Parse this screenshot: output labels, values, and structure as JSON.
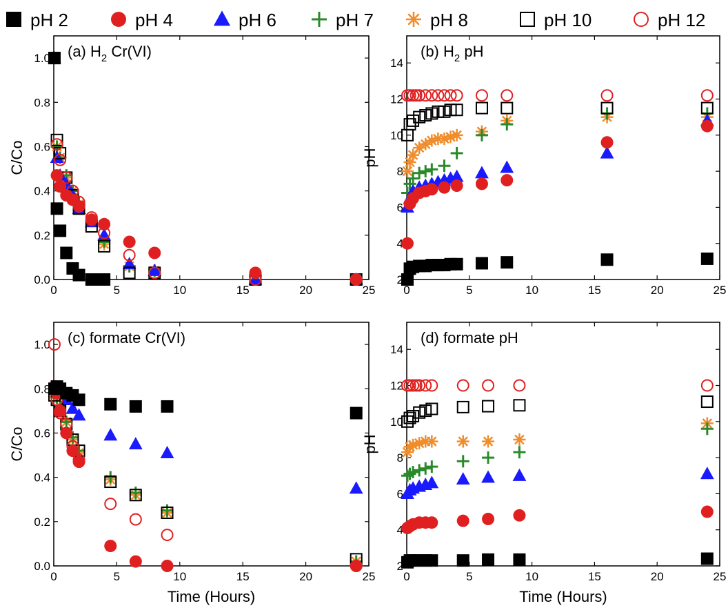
{
  "legend": [
    {
      "label": "pH 2",
      "marker": "filled-square",
      "color": "#000000"
    },
    {
      "label": "pH 4",
      "marker": "filled-circle",
      "color": "#e02020"
    },
    {
      "label": "pH 6",
      "marker": "filled-triangle",
      "color": "#1a1aff"
    },
    {
      "label": "pH 7",
      "marker": "plus",
      "color": "#2a8a2a"
    },
    {
      "label": "pH 8",
      "marker": "asterisk",
      "color": "#f08c2a"
    },
    {
      "label": "pH 10",
      "marker": "open-square",
      "color": "#000000"
    },
    {
      "label": "pH 12",
      "marker": "open-circle",
      "color": "#e02020"
    }
  ],
  "xlabel": "Time (Hours)",
  "chart_data": [
    {
      "type": "scatter",
      "panel_label": "(a) H",
      "panel_label_sub": "2",
      "panel_label_rest": " Cr(VI)",
      "ylabel": "C/Co",
      "xlim": [
        0,
        25
      ],
      "ylim": [
        0,
        1.1
      ],
      "xticks": [
        "0",
        "5",
        "10",
        "15",
        "20",
        "25"
      ],
      "yticks": [
        "0.0",
        "0.2",
        "0.4",
        "0.6",
        "0.8",
        "1.0"
      ],
      "series": [
        {
          "name": "pH 2",
          "x": [
            0,
            0.25,
            0.5,
            1,
            1.5,
            2,
            3,
            3.5,
            4
          ],
          "y": [
            1.0,
            0.32,
            0.22,
            0.12,
            0.05,
            0.02,
            0.0,
            0.0,
            0.0
          ]
        },
        {
          "name": "pH 4",
          "x": [
            0,
            0.25,
            0.5,
            1,
            1.5,
            2,
            3,
            4,
            6,
            8,
            16,
            24
          ],
          "y": [
            1.0,
            0.47,
            0.42,
            0.38,
            0.36,
            0.33,
            0.27,
            0.25,
            0.17,
            0.12,
            0.03,
            0.0
          ]
        },
        {
          "name": "pH 6",
          "x": [
            0,
            0.25,
            0.5,
            1,
            1.5,
            2,
            3,
            4,
            6,
            8,
            16,
            24
          ],
          "y": [
            1.0,
            0.55,
            0.47,
            0.43,
            0.38,
            0.32,
            0.26,
            0.2,
            0.07,
            0.04,
            0.0,
            0.0
          ]
        },
        {
          "name": "pH 7",
          "x": [
            0,
            0.25,
            0.5,
            1,
            1.5,
            2,
            3,
            4,
            6,
            8,
            16,
            24
          ],
          "y": [
            1.0,
            0.6,
            0.55,
            0.47,
            0.4,
            0.35,
            0.27,
            0.17,
            0.06,
            0.04,
            0.0,
            0.0
          ]
        },
        {
          "name": "pH 8",
          "x": [
            0,
            0.25,
            0.5,
            1,
            1.5,
            2,
            3,
            4,
            6,
            8,
            16,
            24
          ],
          "y": [
            1.0,
            0.6,
            0.55,
            0.46,
            0.4,
            0.34,
            0.27,
            0.16,
            0.06,
            0.04,
            0.0,
            0.0
          ]
        },
        {
          "name": "pH 10",
          "x": [
            0,
            0.25,
            0.5,
            1,
            1.5,
            2,
            3,
            4,
            6,
            8,
            16,
            24
          ],
          "y": [
            1.0,
            0.63,
            0.57,
            0.46,
            0.38,
            0.32,
            0.24,
            0.15,
            0.03,
            0.03,
            0.0,
            0.0
          ]
        },
        {
          "name": "pH 12",
          "x": [
            0,
            0.25,
            0.5,
            1,
            1.5,
            2,
            3,
            4,
            6,
            8,
            16,
            24
          ],
          "y": [
            1.0,
            0.61,
            0.54,
            0.46,
            0.4,
            0.35,
            0.28,
            0.21,
            0.11,
            0.03,
            0.0,
            0.0
          ]
        }
      ]
    },
    {
      "type": "scatter",
      "panel_label": "(b) H",
      "panel_label_sub": "2",
      "panel_label_rest": " pH",
      "ylabel": "pH",
      "xlim": [
        0,
        25
      ],
      "ylim": [
        2,
        15.5
      ],
      "xticks": [
        "0",
        "5",
        "10",
        "15",
        "20",
        "25"
      ],
      "yticks": [
        "2",
        "4",
        "6",
        "8",
        "10",
        "12",
        "14"
      ],
      "series": [
        {
          "name": "pH 2",
          "x": [
            0,
            0.25,
            0.5,
            1,
            1.5,
            2,
            2.5,
            3,
            3.5,
            4,
            6,
            8,
            16,
            24
          ],
          "y": [
            2.0,
            2.6,
            2.7,
            2.75,
            2.75,
            2.8,
            2.8,
            2.8,
            2.85,
            2.85,
            2.9,
            2.95,
            3.1,
            3.15
          ]
        },
        {
          "name": "pH 4",
          "x": [
            0,
            0.25,
            0.5,
            1,
            1.5,
            2,
            3,
            4,
            6,
            8,
            16,
            24
          ],
          "y": [
            4.0,
            6.2,
            6.5,
            6.8,
            6.9,
            7.0,
            7.1,
            7.2,
            7.3,
            7.5,
            9.6,
            10.5
          ]
        },
        {
          "name": "pH 6",
          "x": [
            0,
            0.25,
            0.5,
            1,
            1.5,
            2,
            2.5,
            3,
            3.5,
            4,
            6,
            8,
            16,
            24
          ],
          "y": [
            6.0,
            6.5,
            6.9,
            7.1,
            7.2,
            7.3,
            7.4,
            7.5,
            7.6,
            7.7,
            7.9,
            8.2,
            9.0,
            10.8
          ]
        },
        {
          "name": "pH 7",
          "x": [
            0,
            0.25,
            0.5,
            1,
            1.5,
            2,
            3,
            4,
            6,
            8,
            16,
            24
          ],
          "y": [
            6.8,
            7.3,
            7.6,
            7.9,
            8.0,
            8.1,
            8.3,
            9.0,
            10.0,
            10.6,
            11.2,
            11.2
          ]
        },
        {
          "name": "pH 8",
          "x": [
            0,
            0.25,
            0.5,
            1,
            1.5,
            2,
            2.5,
            3,
            3.5,
            4,
            6,
            8,
            16,
            24
          ],
          "y": [
            8.0,
            8.5,
            8.9,
            9.3,
            9.5,
            9.7,
            9.8,
            9.8,
            9.9,
            10.0,
            10.2,
            10.8,
            11.0,
            11.0
          ]
        },
        {
          "name": "pH 10",
          "x": [
            0,
            0.25,
            0.5,
            1,
            1.5,
            2,
            2.5,
            3,
            3.5,
            4,
            6,
            8,
            16,
            24
          ],
          "y": [
            10.0,
            10.6,
            10.8,
            11.0,
            11.1,
            11.2,
            11.3,
            11.3,
            11.4,
            11.4,
            11.5,
            11.5,
            11.5,
            11.5
          ]
        },
        {
          "name": "pH 12",
          "x": [
            0,
            0.25,
            0.5,
            0.75,
            1,
            1.5,
            2,
            2.5,
            3,
            3.5,
            4,
            6,
            8,
            16,
            24
          ],
          "y": [
            12.2,
            12.2,
            12.2,
            12.2,
            12.2,
            12.2,
            12.2,
            12.2,
            12.2,
            12.2,
            12.2,
            12.2,
            12.2,
            12.2,
            12.2
          ]
        }
      ]
    },
    {
      "type": "scatter",
      "panel_label": "(c) formate Cr(VI)",
      "panel_label_sub": "",
      "panel_label_rest": "",
      "ylabel": "C/Co",
      "xlim": [
        0,
        25
      ],
      "ylim": [
        0,
        1.1
      ],
      "xticks": [
        "0",
        "5",
        "10",
        "15",
        "20",
        "25"
      ],
      "yticks": [
        "0.0",
        "0.2",
        "0.4",
        "0.6",
        "0.8",
        "1.0"
      ],
      "series": [
        {
          "name": "pH 2",
          "x": [
            0,
            0.25,
            0.5,
            1,
            1.5,
            2,
            4.5,
            6.5,
            9,
            24
          ],
          "y": [
            0.8,
            0.81,
            0.8,
            0.78,
            0.77,
            0.75,
            0.73,
            0.72,
            0.72,
            0.69
          ]
        },
        {
          "name": "pH 4",
          "x": [
            0,
            0.25,
            0.5,
            1,
            1.5,
            2,
            4.5,
            6.5,
            9,
            24
          ],
          "y": [
            0.81,
            0.78,
            0.7,
            0.6,
            0.52,
            0.47,
            0.09,
            0.02,
            0.0,
            0.0
          ]
        },
        {
          "name": "pH 6",
          "x": [
            0,
            0.25,
            0.5,
            1,
            1.5,
            2,
            4.5,
            6.5,
            9,
            24
          ],
          "y": [
            0.8,
            0.8,
            0.78,
            0.75,
            0.71,
            0.68,
            0.59,
            0.55,
            0.51,
            0.35
          ]
        },
        {
          "name": "pH 7",
          "x": [
            0,
            0.25,
            0.5,
            1,
            1.5,
            2,
            4.5,
            6.5,
            9,
            24
          ],
          "y": [
            0.78,
            0.76,
            0.72,
            0.65,
            0.58,
            0.52,
            0.4,
            0.33,
            0.25,
            0.02
          ]
        },
        {
          "name": "pH 8",
          "x": [
            0,
            0.25,
            0.5,
            1,
            1.5,
            2,
            4.5,
            6.5,
            9,
            24
          ],
          "y": [
            0.78,
            0.76,
            0.72,
            0.65,
            0.57,
            0.51,
            0.39,
            0.32,
            0.24,
            0.02
          ]
        },
        {
          "name": "pH 10",
          "x": [
            0,
            0.25,
            0.5,
            1,
            1.5,
            2,
            4.5,
            6.5,
            9,
            24
          ],
          "y": [
            0.77,
            0.75,
            0.7,
            0.64,
            0.57,
            0.52,
            0.38,
            0.32,
            0.24,
            0.03
          ]
        },
        {
          "name": "pH 12",
          "x": [
            0,
            0.25,
            0.5,
            1,
            1.5,
            2,
            4.5,
            6.5,
            9,
            24
          ],
          "y": [
            1.0,
            0.75,
            0.69,
            0.64,
            0.54,
            0.48,
            0.28,
            0.21,
            0.14,
            0.0
          ]
        }
      ]
    },
    {
      "type": "scatter",
      "panel_label": "(d) formate pH",
      "panel_label_sub": "",
      "panel_label_rest": "",
      "ylabel": "pH",
      "xlim": [
        0,
        25
      ],
      "ylim": [
        2,
        15.5
      ],
      "xticks": [
        "0",
        "5",
        "10",
        "15",
        "20",
        "25"
      ],
      "yticks": [
        "2",
        "4",
        "6",
        "8",
        "10",
        "12",
        "14"
      ],
      "series": [
        {
          "name": "pH 2",
          "x": [
            0,
            0.25,
            0.5,
            1,
            1.5,
            2,
            4.5,
            6.5,
            9,
            24
          ],
          "y": [
            2.2,
            2.3,
            2.3,
            2.3,
            2.3,
            2.3,
            2.3,
            2.35,
            2.35,
            2.4
          ]
        },
        {
          "name": "pH 4",
          "x": [
            0,
            0.25,
            0.5,
            1,
            1.5,
            2,
            4.5,
            6.5,
            9,
            24
          ],
          "y": [
            4.1,
            4.2,
            4.3,
            4.4,
            4.4,
            4.4,
            4.5,
            4.6,
            4.8,
            5.0
          ]
        },
        {
          "name": "pH 6",
          "x": [
            0,
            0.25,
            0.5,
            1,
            1.5,
            2,
            4.5,
            6.5,
            9,
            24
          ],
          "y": [
            6.0,
            6.2,
            6.3,
            6.4,
            6.5,
            6.6,
            6.8,
            6.9,
            7.0,
            7.1
          ]
        },
        {
          "name": "pH 7",
          "x": [
            0,
            0.25,
            0.5,
            1,
            1.5,
            2,
            4.5,
            6.5,
            9,
            24
          ],
          "y": [
            7.0,
            7.1,
            7.2,
            7.3,
            7.4,
            7.5,
            7.8,
            8.0,
            8.3,
            9.6
          ]
        },
        {
          "name": "pH 8",
          "x": [
            0,
            0.25,
            0.5,
            1,
            1.5,
            2,
            4.5,
            6.5,
            9,
            24
          ],
          "y": [
            8.3,
            8.6,
            8.7,
            8.8,
            8.9,
            8.9,
            8.9,
            8.9,
            9.0,
            9.9
          ]
        },
        {
          "name": "pH 10",
          "x": [
            0,
            0.25,
            0.5,
            1,
            1.5,
            2,
            4.5,
            6.5,
            9,
            24
          ],
          "y": [
            10.0,
            10.2,
            10.3,
            10.5,
            10.6,
            10.7,
            10.8,
            10.85,
            10.9,
            11.1
          ]
        },
        {
          "name": "pH 12",
          "x": [
            0,
            0.25,
            0.5,
            0.75,
            1,
            1.5,
            2,
            4.5,
            6.5,
            9,
            24
          ],
          "y": [
            12.0,
            12.0,
            12.0,
            12.0,
            12.0,
            12.0,
            12.0,
            12.0,
            12.0,
            12.0,
            12.0
          ]
        }
      ]
    }
  ]
}
